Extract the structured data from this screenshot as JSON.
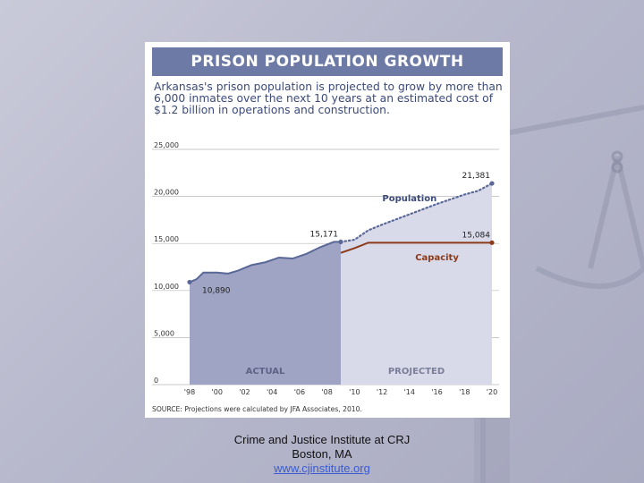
{
  "chart_data": {
    "type": "area",
    "title": "PRISON POPULATION GROWTH",
    "subtitle": "Arkansas's prison population is projected to grow by more than 6,000 inmates over the next 10 years at an estimated cost of $1.2 billion in operations and construction.",
    "ylim": [
      0,
      25000
    ],
    "yticks": [
      0,
      5000,
      10000,
      15000,
      20000,
      25000
    ],
    "ytick_labels": [
      "0",
      "5,000",
      "10,000",
      "15,000",
      "20,000",
      "25,000"
    ],
    "xlim": [
      1998,
      2020
    ],
    "xtick_values": [
      1998,
      2000,
      2002,
      2004,
      2006,
      2008,
      2010,
      2012,
      2014,
      2016,
      2018,
      2020
    ],
    "xtick_labels": [
      "'98",
      "'00",
      "'02",
      "'04",
      "'06",
      "'08",
      "'10",
      "'12",
      "'14",
      "'16",
      "'18",
      "'20"
    ],
    "series": [
      {
        "name": "Population (actual)",
        "color": "#5a6898",
        "x": [
          1998,
          1998.5,
          1999,
          2000,
          2000.8,
          2001.5,
          2002.5,
          2003.5,
          2004.5,
          2005.5,
          2006.5,
          2007.5,
          2008.5,
          2009
        ],
        "y": [
          10890,
          11200,
          11900,
          11900,
          11800,
          12100,
          12700,
          13000,
          13500,
          13400,
          13900,
          14600,
          15171,
          15171
        ]
      },
      {
        "name": "Population (projected)",
        "color": "#5a6898",
        "style": "dotted",
        "x": [
          2009,
          2010,
          2011,
          2012,
          2014,
          2016,
          2018,
          2019,
          2020
        ],
        "y": [
          15171,
          15400,
          16400,
          17000,
          18100,
          19200,
          20200,
          20600,
          21381
        ]
      },
      {
        "name": "Capacity",
        "color": "#8b3a1a",
        "x": [
          2009,
          2010,
          2011,
          2012,
          2014,
          2016,
          2018,
          2020
        ],
        "y": [
          14000,
          14500,
          15084,
          15084,
          15084,
          15084,
          15084,
          15084
        ]
      }
    ],
    "annotations": [
      {
        "text": "10,890",
        "x": 1998,
        "y": 10890
      },
      {
        "text": "15,171",
        "x": 2009,
        "y": 15171
      },
      {
        "text": "21,381",
        "x": 2020,
        "y": 21381
      },
      {
        "text": "15,084",
        "x": 2020,
        "y": 15084
      }
    ],
    "series_labels": {
      "population": "Population",
      "capacity": "Capacity"
    },
    "regions": [
      {
        "label": "ACTUAL",
        "from": 1998,
        "to": 2009
      },
      {
        "label": "PROJECTED",
        "from": 2009,
        "to": 2020
      }
    ],
    "source": "SOURCE:  Projections were calculated by JFA Associates, 2010."
  },
  "colors": {
    "actual_fill": "#9fa4c4",
    "projected_fill": "#d9dae9",
    "population_line": "#5a6898",
    "capacity_line": "#8b3a1a",
    "label_blue": "#3b4a7a"
  },
  "footer": {
    "line1": "Crime and Justice Institute at CRJ",
    "line2": "Boston, MA",
    "link": "www.cjinstitute.org"
  }
}
